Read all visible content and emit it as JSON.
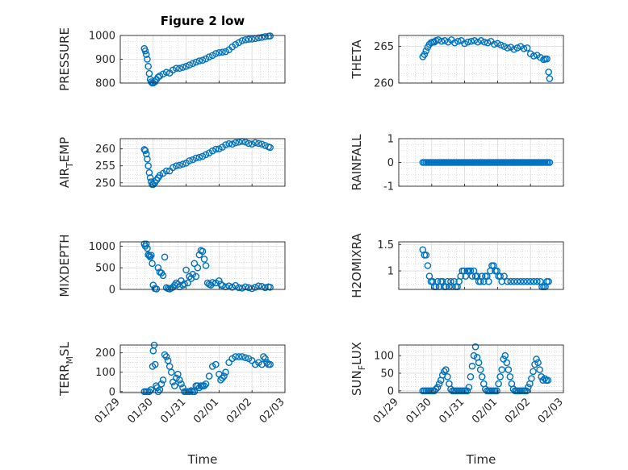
{
  "figure_title": "Figure 2 low",
  "colors": {
    "marker": "#0072BD",
    "axis": "#262626",
    "grid": "#c8c8c8"
  },
  "chart_data": [
    {
      "type": "scatter",
      "id": "pressure",
      "title": "Figure 2 low",
      "ylabel": "PRESSURE",
      "ylabel_sub": null,
      "ylim": [
        800,
        1000
      ],
      "yticks": [
        800,
        900,
        1000
      ],
      "ytick_labels": [
        "800",
        "900",
        "1000"
      ],
      "xlim": [
        0,
        5
      ],
      "xticks": [],
      "xtick_labels": [],
      "xlabel": "",
      "series": [
        {
          "name": "PRESSURE",
          "x": [
            0.73,
            0.76,
            0.79,
            0.82,
            0.85,
            0.88,
            0.91,
            0.94,
            0.97,
            1.0,
            1.05,
            1.1,
            1.15,
            1.2,
            1.3,
            1.4,
            1.5,
            1.6,
            1.7,
            1.8,
            1.9,
            2.0,
            2.1,
            2.2,
            2.3,
            2.4,
            2.5,
            2.6,
            2.7,
            2.8,
            2.9,
            3.0,
            3.1,
            3.2,
            3.3,
            3.4,
            3.5,
            3.6,
            3.7,
            3.8,
            3.9,
            4.0,
            4.1,
            4.2,
            4.3,
            4.4,
            4.5,
            4.55
          ],
          "y": [
            945,
            935,
            920,
            900,
            870,
            840,
            815,
            805,
            800,
            800,
            805,
            815,
            825,
            830,
            838,
            845,
            842,
            855,
            862,
            862,
            866,
            870,
            876,
            882,
            888,
            893,
            896,
            902,
            910,
            916,
            924,
            928,
            930,
            932,
            940,
            952,
            962,
            970,
            978,
            982,
            984,
            985,
            987,
            990,
            992,
            995,
            997,
            998
          ]
        }
      ]
    },
    {
      "type": "scatter",
      "id": "theta",
      "title": "",
      "ylabel": "THETA",
      "ylabel_sub": null,
      "ylim": [
        260,
        266.5
      ],
      "yticks": [
        260,
        265
      ],
      "ytick_labels": [
        "260",
        "265"
      ],
      "xlim": [
        0,
        5
      ],
      "xticks": [],
      "xtick_labels": [],
      "xlabel": "",
      "series": [
        {
          "name": "THETA",
          "x": [
            0.73,
            0.78,
            0.83,
            0.88,
            0.93,
            0.98,
            1.03,
            1.08,
            1.13,
            1.2,
            1.3,
            1.4,
            1.5,
            1.6,
            1.7,
            1.8,
            1.9,
            2.0,
            2.1,
            2.2,
            2.3,
            2.4,
            2.5,
            2.6,
            2.7,
            2.8,
            2.9,
            3.0,
            3.1,
            3.2,
            3.3,
            3.4,
            3.5,
            3.6,
            3.7,
            3.8,
            3.9,
            4.0,
            4.1,
            4.2,
            4.3,
            4.4,
            4.45,
            4.5,
            4.55,
            4.58
          ],
          "y": [
            263.6,
            263.9,
            264.4,
            264.9,
            265.3,
            265.5,
            265.6,
            265.6,
            265.8,
            265.9,
            265.7,
            265.8,
            265.6,
            265.9,
            265.5,
            265.7,
            265.8,
            265.4,
            265.6,
            265.7,
            265.8,
            265.6,
            265.8,
            265.6,
            265.5,
            265.7,
            265.3,
            265.4,
            265.2,
            265.0,
            264.8,
            264.9,
            264.6,
            264.8,
            265.0,
            264.7,
            264.8,
            264.0,
            263.7,
            263.8,
            263.5,
            263.2,
            263.3,
            263.3,
            261.5,
            260.6
          ]
        }
      ]
    },
    {
      "type": "scatter",
      "id": "air_temp",
      "title": "",
      "ylabel": "AIR",
      "ylabel_sub": "T",
      "ylabel_suffix": "EMP",
      "ylim": [
        249,
        263
      ],
      "yticks": [
        250,
        255,
        260
      ],
      "ytick_labels": [
        "250",
        "255",
        "260"
      ],
      "xlim": [
        0,
        5
      ],
      "xticks": [],
      "xtick_labels": [],
      "xlabel": "",
      "series": [
        {
          "name": "AIR_TEMP",
          "x": [
            0.73,
            0.76,
            0.79,
            0.82,
            0.85,
            0.88,
            0.91,
            0.94,
            0.97,
            1.0,
            1.05,
            1.1,
            1.15,
            1.2,
            1.3,
            1.4,
            1.5,
            1.6,
            1.7,
            1.8,
            1.9,
            2.0,
            2.1,
            2.2,
            2.3,
            2.4,
            2.5,
            2.6,
            2.7,
            2.8,
            2.9,
            3.0,
            3.1,
            3.2,
            3.3,
            3.4,
            3.5,
            3.6,
            3.7,
            3.8,
            3.9,
            4.0,
            4.1,
            4.2,
            4.3,
            4.4,
            4.5,
            4.55
          ],
          "y": [
            259.8,
            259.5,
            258.5,
            257.0,
            255.0,
            253.0,
            251.5,
            250.3,
            249.5,
            249.5,
            250.0,
            250.8,
            251.5,
            252.2,
            252.8,
            253.5,
            253.5,
            254.5,
            255.0,
            255.2,
            255.5,
            255.8,
            256.5,
            256.8,
            257.3,
            257.5,
            257.8,
            258.3,
            258.8,
            259.4,
            259.9,
            260.0,
            260.5,
            261.2,
            261.5,
            261.4,
            261.8,
            262.0,
            262.2,
            262.0,
            261.6,
            261.4,
            261.8,
            261.6,
            261.4,
            261.0,
            260.6,
            260.4
          ]
        }
      ]
    },
    {
      "type": "scatter",
      "id": "rainfall",
      "title": "",
      "ylabel": "RAINFALL",
      "ylabel_sub": null,
      "ylim": [
        -1,
        1
      ],
      "yticks": [
        -1,
        0,
        1
      ],
      "ytick_labels": [
        "-1",
        "0",
        "1"
      ],
      "xlim": [
        0,
        5
      ],
      "xticks": [],
      "xtick_labels": [],
      "xlabel": "",
      "series": [
        {
          "name": "RAINFALL",
          "constant_y": 0,
          "x_start": 0.73,
          "x_end": 4.58,
          "count": 80
        }
      ]
    },
    {
      "type": "scatter",
      "id": "mixdepth",
      "title": "",
      "ylabel": "MIXDEPTH",
      "ylabel_sub": null,
      "ylim": [
        0,
        1100
      ],
      "yticks": [
        0,
        500,
        1000
      ],
      "ytick_labels": [
        "0",
        "500",
        "1000"
      ],
      "xlim": [
        0,
        5
      ],
      "xticks": [],
      "xtick_labels": [],
      "xlabel": "",
      "series": [
        {
          "name": "MIXDEPTH",
          "x": [
            0.73,
            0.76,
            0.79,
            0.82,
            0.85,
            0.88,
            0.91,
            0.94,
            0.97,
            1.0,
            1.05,
            1.1,
            1.15,
            1.2,
            1.25,
            1.3,
            1.35,
            1.4,
            1.45,
            1.5,
            1.55,
            1.6,
            1.65,
            1.7,
            1.75,
            1.8,
            1.85,
            1.9,
            1.95,
            2.0,
            2.05,
            2.1,
            2.15,
            2.2,
            2.25,
            2.3,
            2.35,
            2.4,
            2.45,
            2.5,
            2.55,
            2.6,
            2.65,
            2.7,
            2.75,
            2.8,
            2.9,
            3.0,
            3.05,
            3.1,
            3.2,
            3.3,
            3.4,
            3.5,
            3.6,
            3.7,
            3.8,
            3.9,
            4.0,
            4.1,
            4.2,
            4.3,
            4.4,
            4.5,
            4.55
          ],
          "y": [
            1050,
            1000,
            1050,
            950,
            800,
            780,
            750,
            790,
            600,
            100,
            20,
            10,
            500,
            400,
            380,
            320,
            750,
            40,
            20,
            10,
            30,
            50,
            100,
            150,
            120,
            60,
            200,
            100,
            130,
            450,
            150,
            300,
            250,
            350,
            600,
            300,
            500,
            800,
            900,
            880,
            700,
            550,
            150,
            120,
            100,
            160,
            150,
            200,
            120,
            90,
            60,
            80,
            50,
            90,
            40,
            30,
            60,
            40,
            20,
            50,
            80,
            70,
            40,
            60,
            50
          ]
        }
      ]
    },
    {
      "type": "scatter",
      "id": "h2omixra",
      "title": "",
      "ylabel": "H2OMIXRA",
      "ylabel_sub": null,
      "ylim": [
        0.65,
        1.55
      ],
      "yticks": [
        1,
        1.5
      ],
      "ytick_labels": [
        "1",
        "1.5"
      ],
      "xlim": [
        0,
        5
      ],
      "xticks": [],
      "xtick_labels": [],
      "xlabel": "",
      "series": [
        {
          "name": "H2OMIXRA",
          "x": [
            0.73,
            0.78,
            0.83,
            0.88,
            0.93,
            0.98,
            1.03,
            1.08,
            1.13,
            1.18,
            1.23,
            1.28,
            1.33,
            1.38,
            1.43,
            1.48,
            1.53,
            1.58,
            1.63,
            1.68,
            1.73,
            1.78,
            1.83,
            1.88,
            1.93,
            1.98,
            2.03,
            2.08,
            2.13,
            2.18,
            2.23,
            2.28,
            2.33,
            2.38,
            2.43,
            2.48,
            2.53,
            2.58,
            2.63,
            2.68,
            2.73,
            2.78,
            2.83,
            2.88,
            2.93,
            2.98,
            3.03,
            3.08,
            3.13,
            3.2,
            3.3,
            3.4,
            3.5,
            3.6,
            3.7,
            3.8,
            3.9,
            4.0,
            4.1,
            4.2,
            4.3,
            4.35,
            4.4,
            4.45,
            4.5,
            4.55
          ],
          "y": [
            1.4,
            1.3,
            1.3,
            1.1,
            0.9,
            0.8,
            0.8,
            0.7,
            0.7,
            0.8,
            0.7,
            0.8,
            0.8,
            0.7,
            0.7,
            0.8,
            0.7,
            0.8,
            0.7,
            0.8,
            0.7,
            0.7,
            0.8,
            0.9,
            1.0,
            1.0,
            0.9,
            1.0,
            1.0,
            1.0,
            0.9,
            1.0,
            0.9,
            0.9,
            0.8,
            0.8,
            0.9,
            0.8,
            0.9,
            0.9,
            0.8,
            1.0,
            1.1,
            1.1,
            1.0,
            1.0,
            0.9,
            0.9,
            0.8,
            0.9,
            0.8,
            0.8,
            0.8,
            0.8,
            0.8,
            0.8,
            0.8,
            0.8,
            0.8,
            0.8,
            0.8,
            0.7,
            0.7,
            0.7,
            0.8,
            0.8
          ]
        }
      ]
    },
    {
      "type": "scatter",
      "id": "terrmsl",
      "title": "",
      "ylabel": "TERR",
      "ylabel_sub": "M",
      "ylabel_suffix": "SL",
      "ylim": [
        -5,
        240
      ],
      "yticks": [
        0,
        100,
        200
      ],
      "ytick_labels": [
        "0",
        "100",
        "200"
      ],
      "xlim": [
        0,
        5
      ],
      "xticks": [
        0,
        1,
        2,
        3,
        4,
        5
      ],
      "xtick_labels": [
        "01/29",
        "01/30",
        "01/31",
        "02/01",
        "02/02",
        "02/03"
      ],
      "xlabel": "Time",
      "series": [
        {
          "name": "TERRMSL",
          "x": [
            0.73,
            0.78,
            0.83,
            0.88,
            0.93,
            0.98,
            1.0,
            1.03,
            1.06,
            1.09,
            1.12,
            1.15,
            1.2,
            1.25,
            1.3,
            1.35,
            1.4,
            1.45,
            1.5,
            1.55,
            1.6,
            1.65,
            1.7,
            1.75,
            1.8,
            1.85,
            1.9,
            1.95,
            2.0,
            2.05,
            2.1,
            2.15,
            2.2,
            2.25,
            2.3,
            2.35,
            2.4,
            2.45,
            2.5,
            2.55,
            2.6,
            2.7,
            2.8,
            2.9,
            3.0,
            3.05,
            3.1,
            3.15,
            3.2,
            3.3,
            3.4,
            3.5,
            3.6,
            3.7,
            3.8,
            3.9,
            4.0,
            4.1,
            4.2,
            4.3,
            4.35,
            4.4,
            4.45,
            4.5,
            4.55
          ],
          "y": [
            0,
            0,
            0,
            0,
            10,
            130,
            210,
            240,
            140,
            30,
            20,
            0,
            10,
            40,
            60,
            190,
            180,
            160,
            130,
            100,
            50,
            30,
            70,
            90,
            60,
            40,
            20,
            0,
            0,
            0,
            0,
            5,
            0,
            0,
            30,
            30,
            20,
            30,
            30,
            30,
            40,
            80,
            130,
            140,
            90,
            60,
            70,
            80,
            100,
            150,
            170,
            180,
            180,
            180,
            175,
            170,
            160,
            140,
            150,
            140,
            180,
            170,
            150,
            140,
            140
          ]
        }
      ]
    },
    {
      "type": "scatter",
      "id": "sunflux",
      "title": "",
      "ylabel": "SUN",
      "ylabel_sub": "F",
      "ylabel_suffix": "LUX",
      "ylim": [
        -5,
        130
      ],
      "yticks": [
        0,
        50,
        100
      ],
      "ytick_labels": [
        "0",
        "50",
        "100"
      ],
      "xlim": [
        0,
        5
      ],
      "xticks": [
        0,
        1,
        2,
        3,
        4,
        5
      ],
      "xtick_labels": [
        "01/29",
        "01/30",
        "01/31",
        "02/01",
        "02/02",
        "02/03"
      ],
      "xlabel": "Time",
      "series": [
        {
          "name": "SUNFLUX",
          "x": [
            0.73,
            0.78,
            0.83,
            0.88,
            0.93,
            0.98,
            1.03,
            1.08,
            1.13,
            1.18,
            1.23,
            1.28,
            1.33,
            1.38,
            1.43,
            1.48,
            1.53,
            1.58,
            1.63,
            1.68,
            1.73,
            1.78,
            1.83,
            1.88,
            1.93,
            1.98,
            2.03,
            2.08,
            2.13,
            2.18,
            2.23,
            2.28,
            2.33,
            2.38,
            2.43,
            2.48,
            2.53,
            2.58,
            2.63,
            2.68,
            2.73,
            2.78,
            2.83,
            2.88,
            2.93,
            2.98,
            3.03,
            3.08,
            3.13,
            3.18,
            3.23,
            3.28,
            3.33,
            3.38,
            3.43,
            3.48,
            3.53,
            3.58,
            3.63,
            3.68,
            3.73,
            3.78,
            3.83,
            3.88,
            3.93,
            3.98,
            4.03,
            4.08,
            4.13,
            4.18,
            4.23,
            4.28,
            4.33,
            4.38,
            4.43,
            4.48,
            4.53
          ],
          "y": [
            0,
            0,
            0,
            0,
            0,
            0,
            0,
            0,
            5,
            10,
            20,
            30,
            45,
            55,
            60,
            40,
            20,
            5,
            0,
            0,
            0,
            0,
            0,
            0,
            0,
            0,
            0,
            0,
            10,
            40,
            70,
            100,
            125,
            95,
            80,
            60,
            40,
            20,
            5,
            0,
            0,
            0,
            0,
            0,
            0,
            0,
            20,
            40,
            60,
            90,
            100,
            80,
            60,
            40,
            20,
            5,
            0,
            0,
            0,
            0,
            0,
            0,
            0,
            0,
            10,
            20,
            35,
            55,
            75,
            90,
            80,
            60,
            40,
            30,
            35,
            30,
            30
          ]
        }
      ]
    }
  ]
}
